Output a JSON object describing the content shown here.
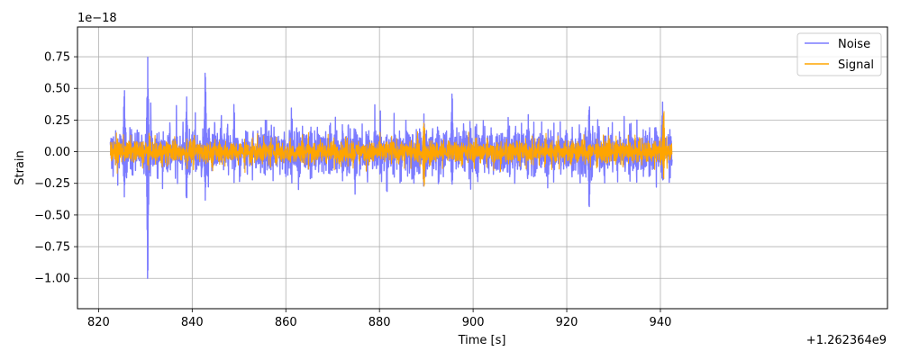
{
  "chart_data": {
    "type": "line",
    "title": "",
    "xlabel": "Time [s]",
    "ylabel": "Strain",
    "x_offset_label": "+1.262364e9",
    "y_scale_label": "1e−18",
    "xlim": [
      815.5,
      988.5
    ],
    "ylim": [
      -1.24,
      0.985
    ],
    "x_ticks": [
      820,
      840,
      860,
      880,
      900,
      920,
      940
    ],
    "x_tick_labels": [
      "820",
      "840",
      "860",
      "880",
      "900",
      "920",
      "940"
    ],
    "y_ticks": [
      -1.0,
      -0.75,
      -0.5,
      -0.25,
      0.0,
      0.25,
      0.5,
      0.75
    ],
    "y_tick_labels": [
      "−1.00",
      "−0.75",
      "−0.50",
      "−0.25",
      "0.00",
      "0.25",
      "0.50",
      "0.75"
    ],
    "grid": true,
    "legend_position": "top-right",
    "x_range": [
      822.5,
      942.5
    ],
    "series": [
      {
        "name": "Noise",
        "color": "#7b7bff",
        "base_amplitude": 0.12,
        "spikes": [
          {
            "t": 825.5,
            "max": 0.55,
            "min": -0.38
          },
          {
            "t": 830.5,
            "max": 0.9,
            "min": -1.13
          },
          {
            "t": 838.8,
            "max": 0.5,
            "min": -0.5
          },
          {
            "t": 842.8,
            "max": 0.75,
            "min": -0.52
          },
          {
            "t": 889.5,
            "max": 0.32,
            "min": -0.4
          },
          {
            "t": 895.5,
            "max": 0.55,
            "min": -0.35
          },
          {
            "t": 924.8,
            "max": 0.42,
            "min": -0.53
          },
          {
            "t": 940.5,
            "max": 0.5,
            "min": -0.32
          }
        ]
      },
      {
        "name": "Signal",
        "color": "#ffa500",
        "base_amplitude": 0.06,
        "spikes": [
          {
            "t": 889.5,
            "max": 0.32,
            "min": -0.37
          },
          {
            "t": 940.7,
            "max": 0.44,
            "min": -0.28
          }
        ]
      }
    ]
  }
}
